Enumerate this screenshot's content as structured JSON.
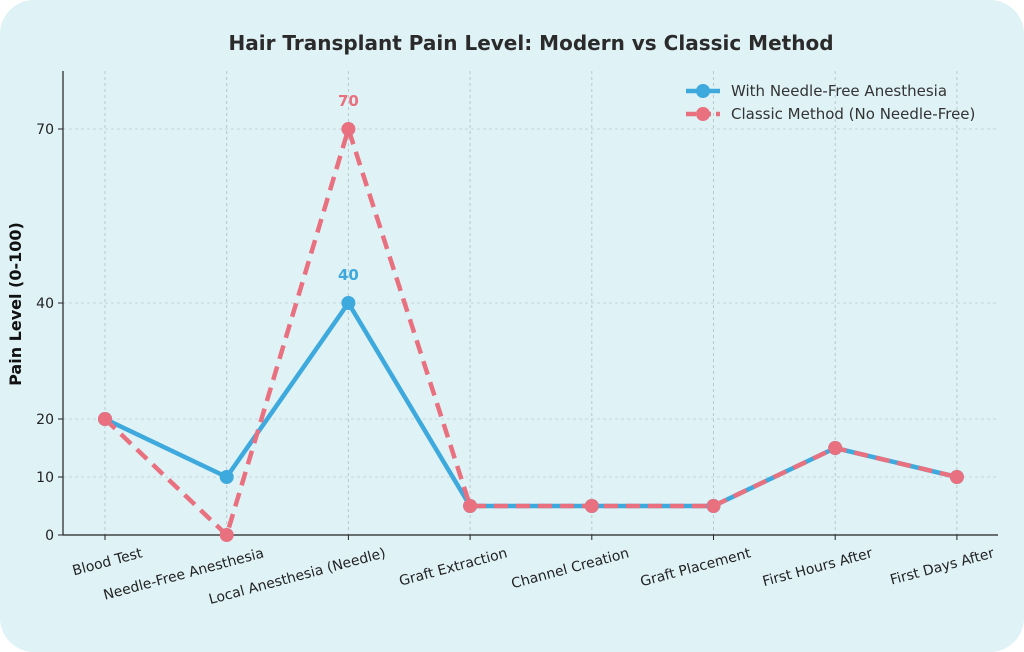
{
  "chart_data": {
    "type": "line",
    "title": "Hair Transplant Pain Level: Modern vs Classic Method",
    "ylabel": "Pain Level (0-100)",
    "xlabel": "",
    "ylim": [
      0,
      80
    ],
    "yticks": [
      0,
      10,
      20,
      40,
      70
    ],
    "grid": true,
    "legend_position": "top-right",
    "categories": [
      "Blood Test",
      "Needle-Free Anesthesia",
      "Local Anesthesia (Needle)",
      "Graft Extraction",
      "Channel Creation",
      "Graft Placement",
      "First Hours After",
      "First Days After"
    ],
    "series": [
      {
        "name": "With Needle-Free Anesthesia",
        "values": [
          20,
          10,
          40,
          5,
          5,
          5,
          15,
          10
        ],
        "color": "#3ea9dd",
        "style": "solid",
        "peak_label": "40"
      },
      {
        "name": "Classic Method (No Needle-Free)",
        "values": [
          20,
          0,
          70,
          5,
          5,
          5,
          15,
          10
        ],
        "color": "#e8707f",
        "style": "dashed",
        "peak_label": "70"
      }
    ]
  }
}
